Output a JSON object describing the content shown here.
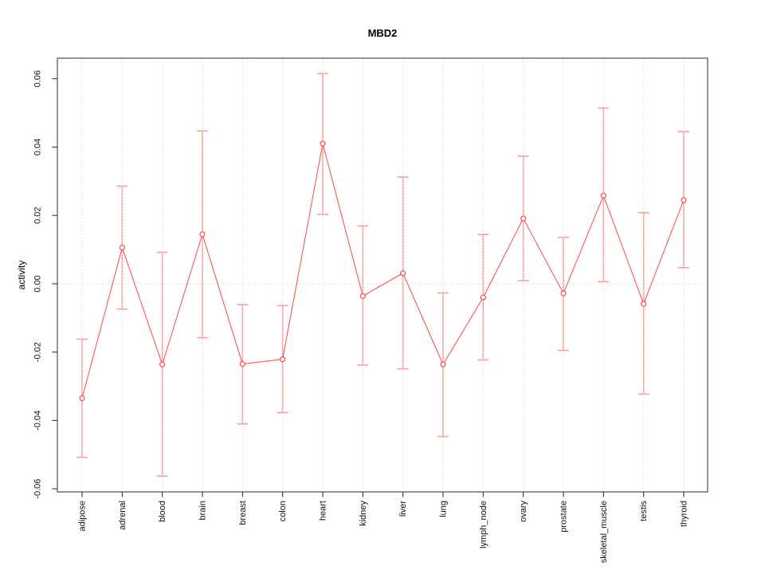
{
  "chart_data": {
    "type": "line",
    "title": "MBD2",
    "xlabel": "",
    "ylabel": "activity",
    "categories": [
      "adipose",
      "adrenal",
      "blood",
      "brain",
      "breast",
      "colon",
      "heart",
      "kidney",
      "liver",
      "lung",
      "lymph_node",
      "ovary",
      "prostate",
      "skeletal_muscle",
      "testis",
      "thyroid"
    ],
    "series": [
      {
        "name": "activity",
        "values": [
          -0.0335,
          0.0106,
          -0.0236,
          0.0145,
          -0.0235,
          -0.0221,
          0.041,
          -0.0036,
          0.0031,
          -0.0236,
          -0.004,
          0.0191,
          -0.0028,
          0.0258,
          -0.0059,
          0.0245
        ],
        "error_upper": [
          -0.0162,
          0.0286,
          0.0092,
          0.0447,
          -0.0061,
          -0.0064,
          0.0615,
          0.0169,
          0.0312,
          -0.0027,
          0.0144,
          0.0373,
          0.0136,
          0.0514,
          0.0208,
          0.0445
        ],
        "error_lower": [
          -0.0508,
          -0.0074,
          -0.0563,
          -0.0158,
          -0.041,
          -0.0377,
          0.0203,
          -0.0238,
          -0.0249,
          -0.0447,
          -0.0223,
          0.0009,
          -0.0195,
          0.0006,
          -0.0323,
          0.0047
        ]
      }
    ],
    "ylim": [
      -0.0609,
      0.066
    ],
    "yticks": [
      0.06,
      0.04,
      0.02,
      0,
      -0.02,
      -0.04,
      -0.06
    ],
    "ytick_labels": [
      "0.06",
      "0.04",
      "0.02",
      "0.00",
      "-0.02",
      "-0.04",
      "-0.06"
    ],
    "grid": "vertical dotted line at each category; horizontal dotted line at 0",
    "legend": "none",
    "marker": "open-circle",
    "colors": {
      "line": "#FF4545",
      "error_bar": "#FF9C9C",
      "marker": "#FF3B3B",
      "grid": "#DADADA",
      "frame": "#4D4D4D",
      "tick": "#222222",
      "text": "#000000",
      "background": "#FFFFFF"
    }
  }
}
